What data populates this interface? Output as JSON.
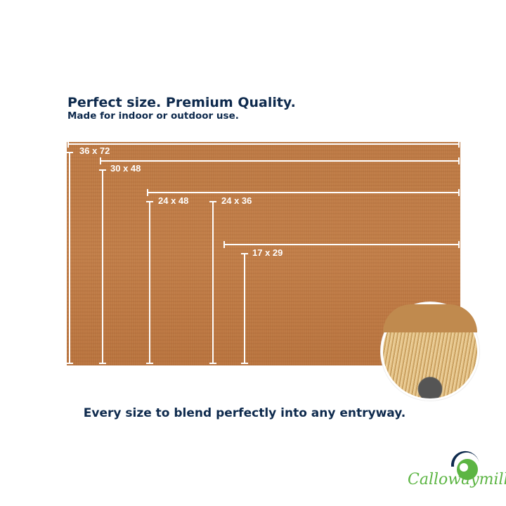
{
  "header": {
    "title": "Perfect size. Premium Quality.",
    "subtitle": "Made for indoor or outdoor use."
  },
  "sizes": [
    "36 x 72",
    "30 x 48",
    "24 x 48",
    "24 x 36",
    "17 x 29"
  ],
  "tagline": "Every size to blend perfectly into any entryway.",
  "brand": {
    "name": "Callowaymills",
    "colors": {
      "navy": "#0e2a4d",
      "green": "#5cb543"
    }
  }
}
